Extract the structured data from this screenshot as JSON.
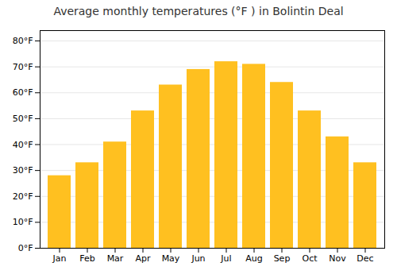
{
  "chart_data": {
    "type": "bar",
    "title": "Average monthly temperatures (°F ) in Bolintin Deal",
    "categories": [
      "Jan",
      "Feb",
      "Mar",
      "Apr",
      "May",
      "Jun",
      "Jul",
      "Aug",
      "Sep",
      "Oct",
      "Nov",
      "Dec"
    ],
    "values": [
      28,
      33,
      41,
      53,
      63,
      69,
      72,
      71,
      64,
      53,
      43,
      33
    ],
    "color": "#FFC020",
    "ylim": [
      0,
      84
    ],
    "yticks": [
      {
        "value": 0,
        "label": "0°F"
      },
      {
        "value": 10,
        "label": "10°F"
      },
      {
        "value": 20,
        "label": "20°F"
      },
      {
        "value": 30,
        "label": "30°F"
      },
      {
        "value": 40,
        "label": "40°F"
      },
      {
        "value": 50,
        "label": "50°F"
      },
      {
        "value": 60,
        "label": "60°F"
      },
      {
        "value": 70,
        "label": "70°F"
      },
      {
        "value": 80,
        "label": "80°F"
      }
    ],
    "grid": true
  }
}
